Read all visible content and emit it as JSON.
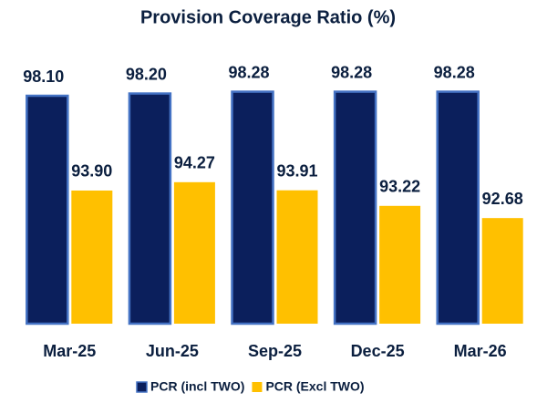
{
  "chart_data": {
    "type": "bar",
    "title": "Provision Coverage Ratio (%)",
    "categories": [
      "Mar-25",
      "Jun-25",
      "Sep-25",
      "Dec-25",
      "Mar-26"
    ],
    "series": [
      {
        "name": "PCR (incl TWO)",
        "color": "#0b1f5c",
        "values": [
          98.1,
          98.2,
          98.28,
          98.28,
          98.28
        ],
        "value_labels": [
          "98.10",
          "98.20",
          "98.28",
          "98.28",
          "98.28"
        ]
      },
      {
        "name": "PCR (Excl TWO)",
        "color": "#ffc000",
        "values": [
          93.9,
          94.27,
          93.91,
          93.22,
          92.68
        ],
        "value_labels": [
          "93.90",
          "94.27",
          "93.91",
          "93.22",
          "92.68"
        ]
      }
    ],
    "ylim": [
      88,
      100
    ],
    "legend": "bottom"
  }
}
